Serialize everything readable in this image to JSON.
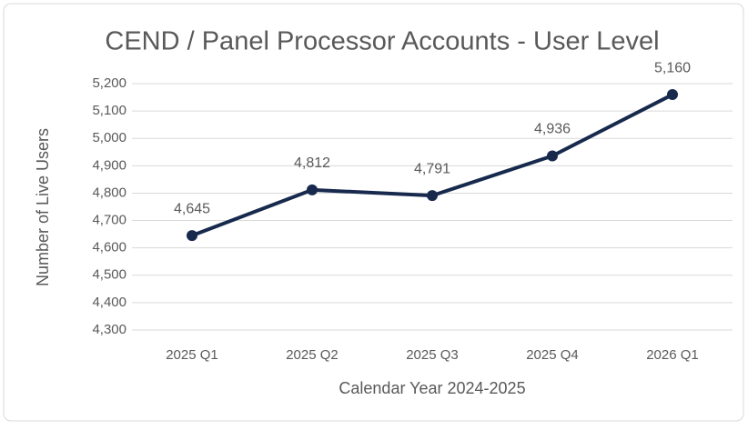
{
  "chart_data": {
    "type": "line",
    "title": "CEND / Panel Processor Accounts - User Level",
    "x_label": "Calendar Year 2024-2025",
    "y_label": "Number of Live Users",
    "categories": [
      "2025 Q1",
      "2025 Q2",
      "2025 Q3",
      "2025 Q4",
      "2026 Q1"
    ],
    "values": [
      4645,
      4812,
      4791,
      4936,
      5160
    ],
    "value_labels": [
      "4,645",
      "4,812",
      "4,791",
      "4,936",
      "5,160"
    ],
    "color": "#172a4d",
    "ylim": [
      4300,
      5200
    ],
    "yticks": [
      {
        "value": 4300,
        "label": "4,300"
      },
      {
        "value": 4400,
        "label": "4,400"
      },
      {
        "value": 4500,
        "label": "4,500"
      },
      {
        "value": 4600,
        "label": "4,600"
      },
      {
        "value": 4700,
        "label": "4,700"
      },
      {
        "value": 4800,
        "label": "4,800"
      },
      {
        "value": 4900,
        "label": "4,900"
      },
      {
        "value": 5000,
        "label": "5,000"
      },
      {
        "value": 5100,
        "label": "5,100"
      },
      {
        "value": 5200,
        "label": "5,200"
      }
    ],
    "grid": true
  }
}
